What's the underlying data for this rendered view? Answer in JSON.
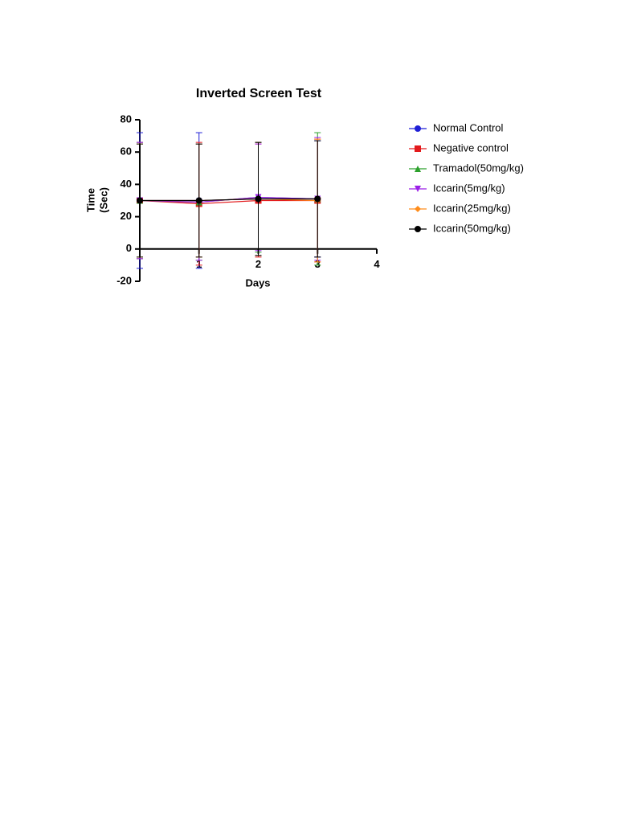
{
  "chart_data": {
    "type": "line",
    "title": "Inverted Screen Test",
    "xlabel": "Days",
    "ylabel": [
      "Time",
      "(Sec)"
    ],
    "x": [
      0,
      1,
      2,
      3
    ],
    "xlim": [
      0,
      4
    ],
    "xticks": [
      1,
      2,
      3,
      4
    ],
    "ylim": [
      -20,
      80
    ],
    "yticks": [
      -20,
      0,
      20,
      40,
      60,
      80
    ],
    "legend": "right",
    "series": [
      {
        "name": "Normal Control",
        "color": "#1f1fd6",
        "marker": "circle",
        "values": [
          30,
          30,
          31,
          31
        ],
        "errors": [
          42,
          42,
          35,
          36
        ]
      },
      {
        "name": "Negative control",
        "color": "#e31a1c",
        "marker": "square",
        "values": [
          30,
          28,
          30,
          30
        ],
        "errors": [
          36,
          38,
          35,
          38
        ]
      },
      {
        "name": "Tramadol(50mg/kg)",
        "color": "#2ca02c",
        "marker": "triangle-up",
        "values": [
          30,
          29,
          32,
          31
        ],
        "errors": [
          36,
          36,
          34,
          41
        ]
      },
      {
        "name": "Iccarin(5mg/kg)",
        "color": "#9b1fe8",
        "marker": "triangle-down",
        "values": [
          30,
          29,
          32,
          31
        ],
        "errors": [
          36,
          36,
          33,
          38
        ]
      },
      {
        "name": "Iccarin(25mg/kg)",
        "color": "#ff8c1a",
        "marker": "diamond",
        "values": [
          30,
          30,
          31,
          30
        ],
        "errors": [
          35,
          35,
          35,
          38
        ]
      },
      {
        "name": "Iccarin(50mg/kg)",
        "color": "#000000",
        "marker": "circle",
        "values": [
          30,
          30,
          31,
          31
        ],
        "errors": [
          35,
          35,
          35,
          36
        ]
      }
    ]
  }
}
